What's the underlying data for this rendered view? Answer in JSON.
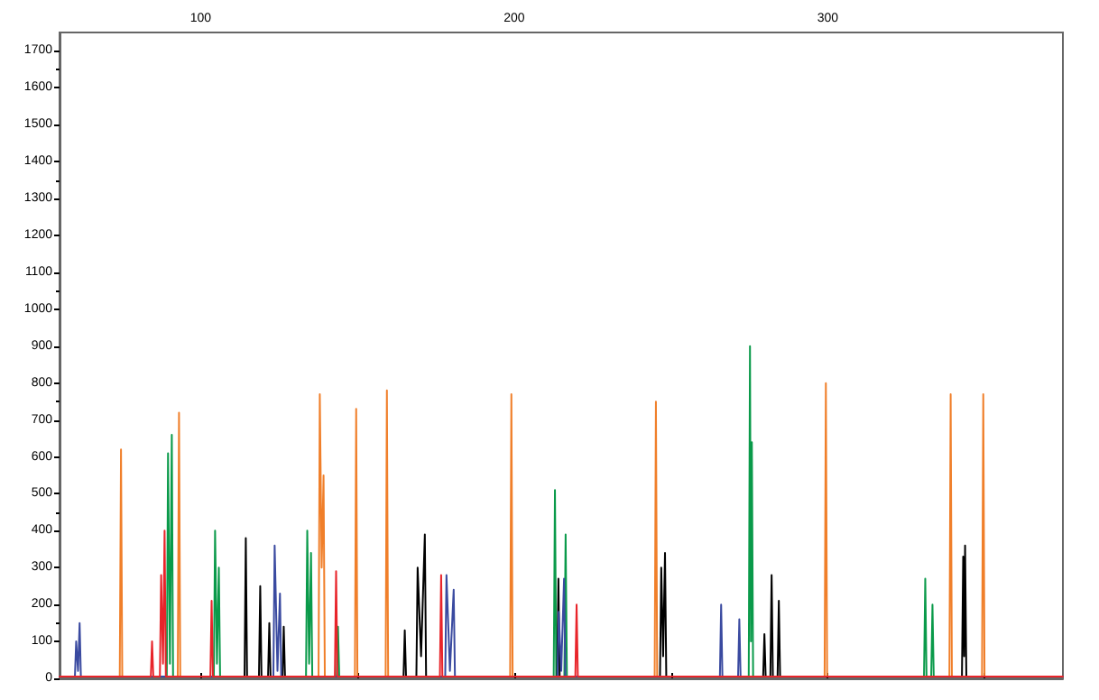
{
  "chart_data": {
    "type": "line",
    "xlim": [
      55,
      375
    ],
    "xticks": [
      100,
      {
        "value": 150,
        "label": null
      },
      200,
      {
        "value": 250,
        "label": null
      },
      300,
      {
        "value": 350,
        "label": null
      }
    ],
    "ylim": [
      0,
      1750
    ],
    "yticks": [
      0,
      100,
      200,
      300,
      400,
      500,
      600,
      700,
      800,
      900,
      1000,
      1100,
      1200,
      1300,
      1400,
      1500,
      1600,
      1700
    ],
    "grid": false,
    "marker": "none",
    "line_style": "solid",
    "series": [
      {
        "color": "#f07f2a",
        "x": [
          55,
          74.2,
          74.6,
          75,
          92.7,
          93.1,
          93.5,
          137.6,
          138,
          138.6,
          139.2,
          139.6,
          149.2,
          149.6,
          150,
          159,
          159.4,
          159.8,
          198.7,
          199.1,
          199.5,
          244.8,
          245.2,
          245.6,
          299,
          299.4,
          299.8,
          338.8,
          339.2,
          339.6,
          349.2,
          349.6,
          350,
          375
        ],
        "values": [
          5,
          5,
          620,
          5,
          5,
          720,
          5,
          5,
          770,
          300,
          550,
          5,
          5,
          730,
          5,
          5,
          780,
          5,
          5,
          770,
          5,
          5,
          750,
          5,
          5,
          800,
          5,
          5,
          770,
          5,
          5,
          770,
          5,
          5
        ]
      },
      {
        "color": "#0a9a4a",
        "x": [
          55,
          89.2,
          89.6,
          90.2,
          90.8,
          91.2,
          104.2,
          104.6,
          105.2,
          105.8,
          106.2,
          133.6,
          134,
          134.6,
          135.2,
          135.6,
          143.4,
          143.8,
          144.2,
          212.6,
          213,
          213.4,
          216,
          216.4,
          216.8,
          274.8,
          275.2,
          275.5,
          275.8,
          276.2,
          330.7,
          331.1,
          331.5,
          333,
          333.4,
          333.8,
          375
        ],
        "values": [
          5,
          5,
          610,
          40,
          660,
          5,
          5,
          400,
          40,
          300,
          5,
          5,
          400,
          40,
          340,
          5,
          5,
          140,
          5,
          5,
          510,
          5,
          5,
          390,
          5,
          5,
          900,
          100,
          640,
          5,
          5,
          270,
          5,
          5,
          200,
          5,
          5
        ]
      },
      {
        "color": "#000000",
        "x": [
          55,
          114,
          114.4,
          114.8,
          118.6,
          119,
          119.4,
          121.5,
          121.9,
          122.3,
          126.1,
          126.5,
          126.9,
          164.7,
          165.1,
          165.5,
          168.8,
          169.2,
          170.3,
          171.5,
          171.9,
          213.7,
          214.1,
          214.5,
          246.5,
          246.9,
          247.5,
          248.1,
          248.5,
          279.4,
          279.8,
          280.2,
          281.7,
          282.1,
          282.5,
          284,
          284.4,
          284.8,
          342.8,
          343.2,
          343.5,
          343.8,
          344.2,
          375
        ],
        "values": [
          5,
          5,
          380,
          5,
          5,
          250,
          5,
          5,
          150,
          5,
          5,
          140,
          5,
          5,
          130,
          5,
          5,
          300,
          60,
          390,
          5,
          5,
          270,
          5,
          5,
          300,
          60,
          340,
          5,
          5,
          120,
          5,
          5,
          280,
          5,
          5,
          210,
          5,
          5,
          330,
          60,
          360,
          5,
          5
        ]
      },
      {
        "color": "#3a4aa0",
        "x": [
          55,
          59.9,
          60.3,
          60.9,
          61.4,
          61.8,
          123.2,
          123.6,
          124.5,
          125.3,
          125.7,
          178,
          178.4,
          179.5,
          180.7,
          181.1,
          213.8,
          214.2,
          215,
          215.9,
          216.3,
          265.6,
          266,
          266.4,
          271.4,
          271.8,
          272.2,
          375
        ],
        "values": [
          5,
          5,
          100,
          20,
          150,
          5,
          5,
          360,
          20,
          230,
          5,
          5,
          280,
          20,
          240,
          5,
          5,
          180,
          20,
          270,
          5,
          5,
          200,
          5,
          5,
          160,
          5,
          5
        ]
      },
      {
        "color": "#e8242a",
        "x": [
          55,
          84.1,
          84.5,
          84.9,
          87,
          87.4,
          88,
          88.5,
          88.9,
          103.1,
          103.5,
          103.9,
          142.8,
          143.2,
          143.6,
          176.3,
          176.7,
          177.1,
          219.5,
          219.9,
          220.3,
          375
        ],
        "values": [
          5,
          5,
          100,
          5,
          5,
          280,
          40,
          400,
          5,
          5,
          210,
          5,
          5,
          290,
          5,
          5,
          280,
          5,
          5,
          200,
          5,
          5
        ]
      }
    ]
  }
}
